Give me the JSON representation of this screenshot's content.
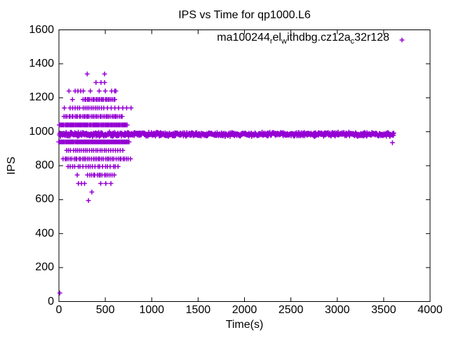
{
  "page": {
    "background": "#ffffff",
    "foreground": "#000000"
  },
  "chart_data": {
    "type": "scatter",
    "title": "IPS vs Time for qp1000.L6",
    "xlabel": "Time(s)",
    "ylabel": "IPS",
    "xlim": [
      0,
      4000
    ],
    "ylim": [
      0,
      1600
    ],
    "xticks": [
      0,
      500,
      1000,
      1500,
      2000,
      2500,
      3000,
      3500,
      4000
    ],
    "yticks": [
      0,
      200,
      400,
      600,
      800,
      1000,
      1200,
      1400,
      1600
    ],
    "grid": false,
    "legend_position": "top-right-inside",
    "marker": "plus",
    "marker_color": "#9400d3",
    "series": [
      {
        "name": "ma100244_rel_withdbg.cz12a_c32r128",
        "name_segments": [
          {
            "text": "ma100244",
            "sub": false
          },
          {
            "text": "r",
            "sub": true
          },
          {
            "text": "el",
            "sub": false
          },
          {
            "text": "w",
            "sub": true
          },
          {
            "text": "ithdbg.cz12a",
            "sub": false
          },
          {
            "text": "c",
            "sub": true
          },
          {
            "text": "32r128",
            "sub": false
          }
        ],
        "color": "#9400d3",
        "band": {
          "ips": 985,
          "t_start": 5,
          "t_end": 3610,
          "step": 4,
          "ips_jitter": 14
        },
        "levels": [
          {
            "ips": 1340,
            "t": [
              305,
              492
            ]
          },
          {
            "ips": 1290,
            "t": [
              399,
              454,
              492
            ]
          },
          {
            "ips": 1240,
            "t": [
              108,
              175,
              205,
              235,
              262,
              338,
              434,
              500,
              568,
              600,
              613
            ]
          },
          {
            "ips": 1190,
            "t": [
              146
            ],
            "runs": [
              {
                "from": 260,
                "to": 618,
                "step": 15
              }
            ]
          },
          {
            "ips": 1140,
            "t": [
              58,
              120,
              148,
              175,
              200,
              222,
              262,
              283,
              303,
              323,
              348,
              368,
              392,
              412,
              433,
              458,
              483,
              523,
              563,
              603,
              643,
              688,
              730,
              777
            ]
          },
          {
            "ips": 1090,
            "runs": [
              {
                "from": 58,
                "to": 688,
                "step": 16
              }
            ]
          },
          {
            "ips": 1040,
            "runs": [
              {
                "from": 5,
                "to": 739,
                "step": 10
              }
            ]
          },
          {
            "ips": 940,
            "runs": [
              {
                "from": 0,
                "to": 764,
                "step": 9
              }
            ]
          },
          {
            "ips": 890,
            "t": [
              83,
              103,
              124,
              158,
              179,
              199,
              219,
              240,
              264,
              284,
              304,
              329,
              354,
              374,
              399,
              419,
              444,
              464,
              489,
              509,
              534,
              559,
              584,
              609,
              634,
              660,
              688
            ]
          },
          {
            "ips": 840,
            "runs": [
              {
                "from": 45,
                "to": 777,
                "step": 19
              }
            ]
          },
          {
            "ips": 795,
            "runs": [
              {
                "from": 96,
                "to": 638,
                "step": 27
              }
            ]
          },
          {
            "ips": 745,
            "t": [
              197
            ],
            "runs": [
              {
                "from": 310,
                "to": 600,
                "step": 20
              }
            ]
          },
          {
            "ips": 695,
            "t": [
              210,
              243,
              276,
              450,
              505,
              560
            ]
          },
          {
            "ips": 645,
            "t": [
              355
            ]
          },
          {
            "ips": 595,
            "t": [
              318
            ]
          }
        ],
        "outliers": [
          [
            10,
            50
          ],
          [
            3595,
            935
          ]
        ]
      }
    ]
  }
}
